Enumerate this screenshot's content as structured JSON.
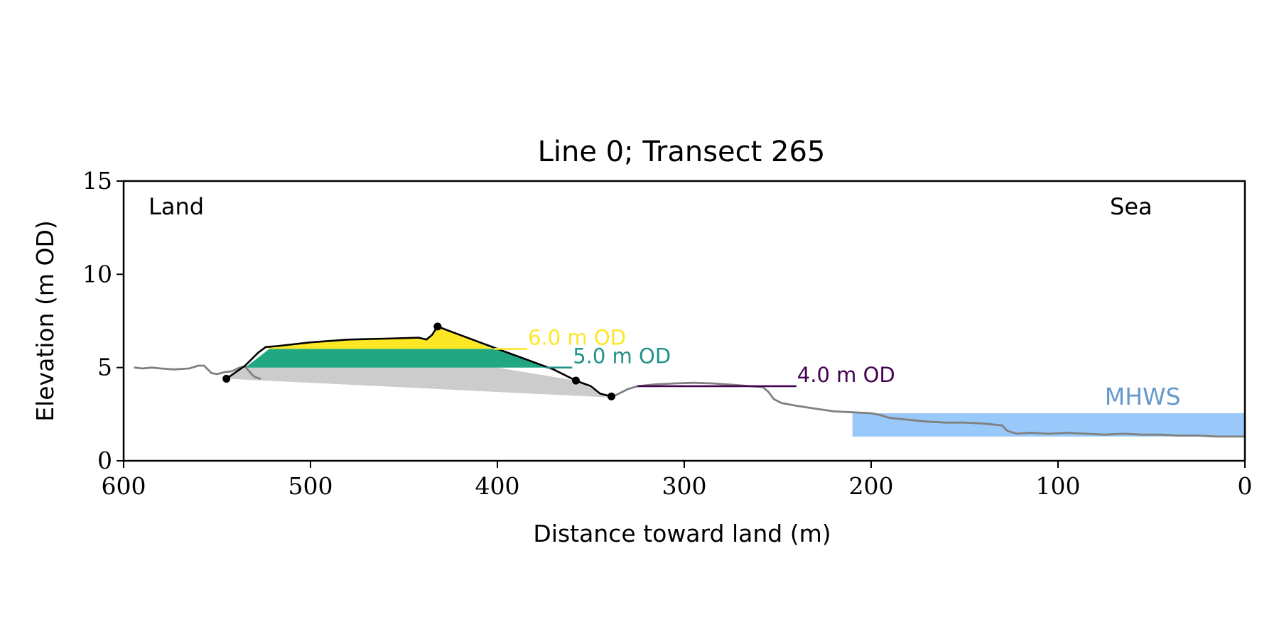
{
  "chart_data": {
    "type": "line",
    "title": "Line 0; Transect 265",
    "xlabel": "Distance toward land (m)",
    "ylabel": "Elevation (m OD)",
    "xlim": [
      600,
      0
    ],
    "ylim": [
      0,
      15
    ],
    "x_ticks": [
      600,
      500,
      400,
      300,
      200,
      100,
      0
    ],
    "y_ticks": [
      0,
      5,
      10,
      15
    ],
    "x_tick_labels": [
      "600",
      "500",
      "400",
      "300",
      "200",
      "100",
      "0"
    ],
    "y_tick_labels": [
      "0",
      "5",
      "10",
      "15"
    ],
    "grid": false,
    "annotations": {
      "land": "Land",
      "sea": "Sea",
      "mhws": "MHWS"
    },
    "colors": {
      "profile": "#808080",
      "dune_outline": "#000000",
      "base_fill": "#cccccc",
      "level_6": "#fde725",
      "level_5": "#21a883",
      "level_5_label": "#21918c",
      "level_4": "#440154",
      "mhws_fill": "#99c9fb",
      "mhws_text": "#6699cc"
    },
    "series": [
      {
        "role": "ground-profile",
        "points": [
          [
            594,
            5.0
          ],
          [
            590,
            4.95
          ],
          [
            585,
            5.0
          ],
          [
            580,
            4.95
          ],
          [
            573,
            4.9
          ],
          [
            565,
            4.95
          ],
          [
            560,
            5.1
          ],
          [
            557,
            5.1
          ],
          [
            553,
            4.7
          ],
          [
            550,
            4.65
          ],
          [
            546,
            4.75
          ],
          [
            542,
            4.8
          ],
          [
            538,
            5.0
          ],
          [
            535,
            5.05
          ],
          [
            532,
            4.7
          ],
          [
            530,
            4.5
          ],
          [
            527,
            4.4
          ]
        ]
      },
      {
        "role": "ground-profile",
        "points": [
          [
            340,
            3.35
          ],
          [
            335,
            3.6
          ],
          [
            330,
            3.85
          ],
          [
            325,
            4.0
          ],
          [
            315,
            4.1
          ],
          [
            305,
            4.15
          ],
          [
            295,
            4.18
          ],
          [
            285,
            4.15
          ],
          [
            275,
            4.08
          ],
          [
            265,
            4.0
          ],
          [
            258,
            3.95
          ],
          [
            255,
            3.7
          ],
          [
            252,
            3.3
          ],
          [
            248,
            3.1
          ],
          [
            240,
            2.95
          ],
          [
            230,
            2.8
          ],
          [
            220,
            2.65
          ],
          [
            210,
            2.6
          ],
          [
            200,
            2.55
          ],
          [
            195,
            2.45
          ],
          [
            190,
            2.3
          ],
          [
            180,
            2.2
          ],
          [
            170,
            2.1
          ],
          [
            160,
            2.05
          ],
          [
            150,
            2.05
          ],
          [
            140,
            2.0
          ],
          [
            135,
            1.95
          ],
          [
            130,
            1.9
          ],
          [
            127,
            1.6
          ],
          [
            122,
            1.45
          ],
          [
            115,
            1.5
          ],
          [
            105,
            1.45
          ],
          [
            95,
            1.5
          ],
          [
            85,
            1.45
          ],
          [
            75,
            1.4
          ],
          [
            65,
            1.45
          ],
          [
            55,
            1.4
          ],
          [
            45,
            1.4
          ],
          [
            35,
            1.35
          ],
          [
            25,
            1.35
          ],
          [
            15,
            1.3
          ],
          [
            5,
            1.3
          ],
          [
            0,
            1.3
          ]
        ]
      },
      {
        "role": "dune-outline",
        "points": [
          [
            545,
            4.4
          ],
          [
            535,
            5.1
          ],
          [
            528,
            5.8
          ],
          [
            524,
            6.1
          ],
          [
            518,
            6.15
          ],
          [
            500,
            6.35
          ],
          [
            480,
            6.5
          ],
          [
            460,
            6.55
          ],
          [
            442,
            6.6
          ],
          [
            438,
            6.5
          ],
          [
            435,
            6.75
          ],
          [
            432,
            7.2
          ],
          [
            400,
            6.0
          ],
          [
            370,
            4.9
          ],
          [
            358,
            4.3
          ],
          [
            350,
            4.0
          ],
          [
            345,
            3.6
          ],
          [
            339,
            3.45
          ]
        ]
      }
    ],
    "shaded_regions": [
      {
        "role": "base",
        "polygon": [
          [
            545,
            4.4
          ],
          [
            535,
            5.0
          ],
          [
            400,
            5.0
          ],
          [
            358,
            4.3
          ],
          [
            340,
            3.4
          ]
        ]
      },
      {
        "role": "level-5m",
        "polygon": [
          [
            535,
            5.0
          ],
          [
            522,
            6.0
          ],
          [
            400,
            6.0
          ],
          [
            374,
            5.0
          ]
        ]
      },
      {
        "role": "level-6m",
        "polygon": [
          [
            522,
            6.0
          ],
          [
            524,
            6.1
          ],
          [
            518,
            6.15
          ],
          [
            500,
            6.35
          ],
          [
            480,
            6.5
          ],
          [
            460,
            6.55
          ],
          [
            442,
            6.6
          ],
          [
            438,
            6.5
          ],
          [
            435,
            6.75
          ],
          [
            432,
            7.2
          ],
          [
            402,
            6.0
          ]
        ]
      },
      {
        "role": "mhws",
        "x_range": [
          210,
          0
        ],
        "y_range": [
          1.3,
          2.55
        ]
      }
    ],
    "markers": [
      {
        "x": 545,
        "y": 4.4
      },
      {
        "x": 432,
        "y": 7.2
      },
      {
        "x": 358,
        "y": 4.3
      },
      {
        "x": 339,
        "y": 3.45
      }
    ],
    "levels": [
      {
        "label": "6.0 m OD",
        "elevation": 6.0,
        "x_start": 402,
        "x_end": 384,
        "color": "#fde725"
      },
      {
        "label": "5.0 m OD",
        "elevation": 5.0,
        "x_start": 374,
        "x_end": 360,
        "color": "#21918c"
      },
      {
        "label": "4.0 m OD",
        "elevation": 4.0,
        "x_start": 325,
        "x_end": 240,
        "color": "#440154"
      }
    ]
  }
}
